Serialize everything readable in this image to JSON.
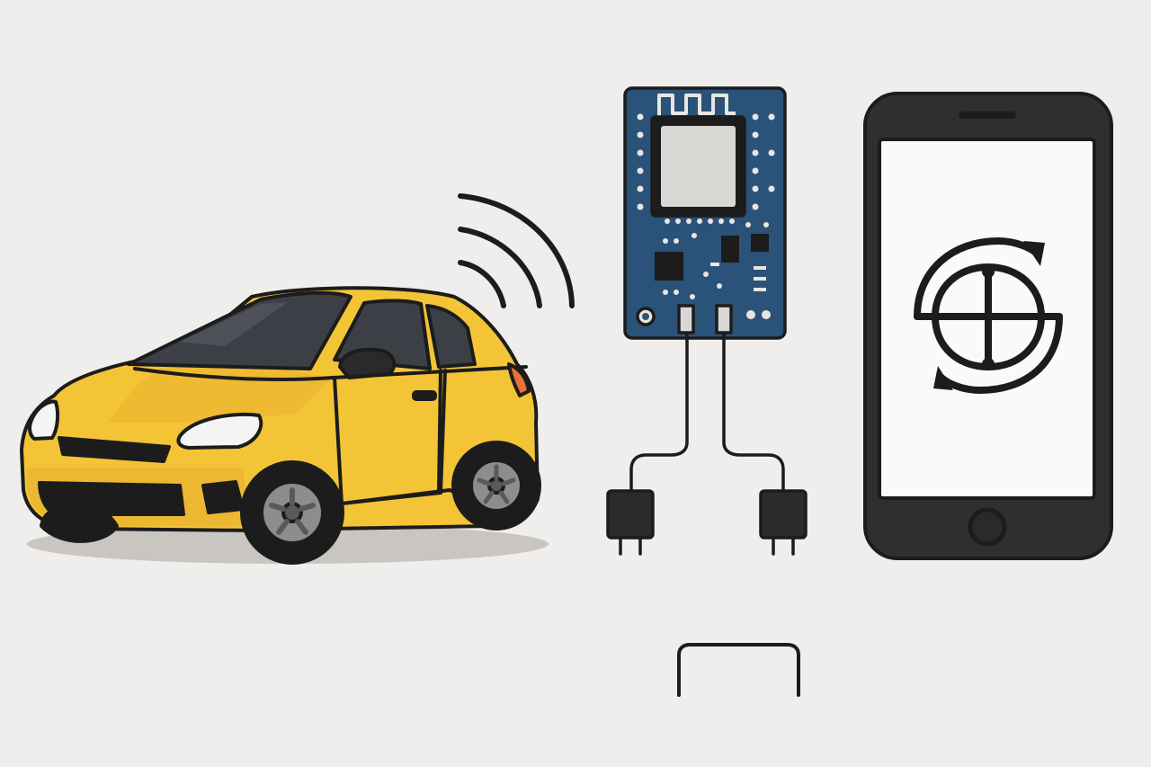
{
  "colors": {
    "background": "#efeeec",
    "outline": "#1c1c1c",
    "car_body": "#f4c437",
    "car_shade": "#e2a92a",
    "car_window": "#3c3f45",
    "pcb": "#2b5278",
    "pcb_module": "#d9d7d3",
    "phone_body": "#2f2f2f",
    "phone_screen": "#fbfaf9",
    "shadow": "#c9c6c1"
  },
  "icons": {
    "car": "car-icon",
    "wireless": "wireless-signal-icon",
    "board": "wifi-module-board-icon",
    "connector": "plug-connector-icon",
    "phone": "smartphone-icon",
    "sync": "sync-arrows-icon",
    "bracket": "bracket-icon"
  }
}
